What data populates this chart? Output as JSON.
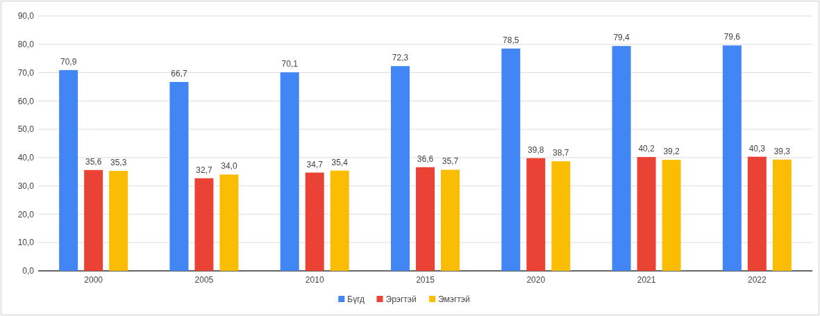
{
  "chart_data": {
    "type": "bar",
    "categories": [
      "2000",
      "2005",
      "2010",
      "2015",
      "2020",
      "2021",
      "2022"
    ],
    "series": [
      {
        "name": "Бүгд",
        "color": "#4285f4",
        "values": [
          70.9,
          66.7,
          70.1,
          72.3,
          78.5,
          79.4,
          79.6
        ],
        "value_labels": [
          "70,9",
          "66,7",
          "70,1",
          "72,3",
          "78,5",
          "79,4",
          "79,6"
        ]
      },
      {
        "name": "Эрэгтэй",
        "color": "#ea4335",
        "values": [
          35.6,
          32.7,
          34.7,
          36.6,
          39.8,
          40.2,
          40.3
        ],
        "value_labels": [
          "35,6",
          "32,7",
          "34,7",
          "36,6",
          "39,8",
          "40,2",
          "40,3"
        ]
      },
      {
        "name": "Эмэгтэй",
        "color": "#fbbc04",
        "values": [
          35.3,
          34.0,
          35.4,
          35.7,
          38.7,
          39.2,
          39.3
        ],
        "value_labels": [
          "35,3",
          "34,0",
          "35,4",
          "35,7",
          "38,7",
          "39,2",
          "39,3"
        ]
      }
    ],
    "ylim": [
      0,
      90
    ],
    "yticks": [
      {
        "value": 0,
        "label": "0,0"
      },
      {
        "value": 10,
        "label": "10,0"
      },
      {
        "value": 20,
        "label": "20,0"
      },
      {
        "value": 30,
        "label": "30,0"
      },
      {
        "value": 40,
        "label": "40,0"
      },
      {
        "value": 50,
        "label": "50,0"
      },
      {
        "value": 60,
        "label": "60,0"
      },
      {
        "value": 70,
        "label": "70,0"
      },
      {
        "value": 80,
        "label": "80,0"
      },
      {
        "value": 90,
        "label": "90,0"
      }
    ],
    "grid": "y",
    "legend": "bottom"
  }
}
